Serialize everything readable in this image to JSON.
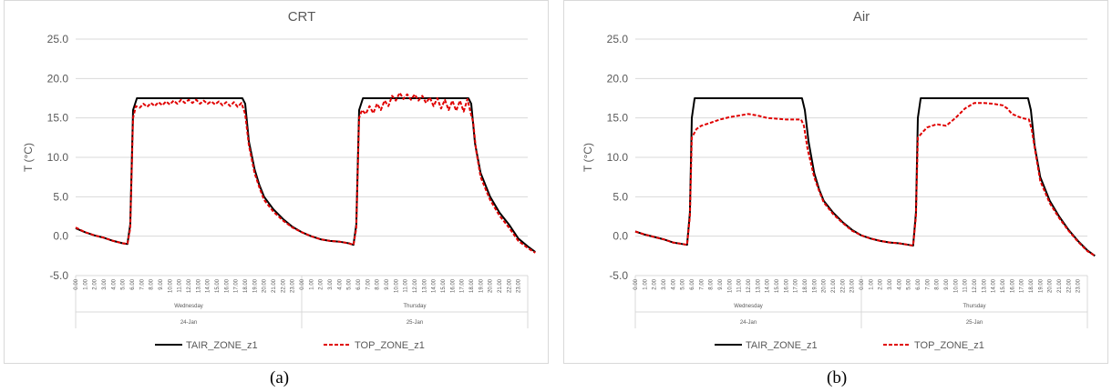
{
  "chart_data": [
    {
      "type": "line",
      "title": "CRT",
      "caption": "(a)",
      "ylabel": "T (°C)",
      "ylim": [
        -5,
        25
      ],
      "yticks": [
        "-5.0",
        "0.0",
        "5.0",
        "10.0",
        "15.0",
        "20.0",
        "25.0"
      ],
      "x_hours": [
        "0.00",
        "1.00",
        "2.00",
        "3.00",
        "4.00",
        "5.00",
        "6.00",
        "7.00",
        "8.00",
        "9.00",
        "10.00",
        "11.00",
        "12.00",
        "13.00",
        "14.00",
        "15.00",
        "16.00",
        "17.00",
        "18.00",
        "19.00",
        "20.00",
        "21.00",
        "22.00",
        "23.00"
      ],
      "days": [
        {
          "weekday": "Wednesday",
          "date": "24-Jan"
        },
        {
          "weekday": "Thursday",
          "date": "25-Jan"
        }
      ],
      "grid": true,
      "legend_position": "bottom",
      "series": [
        {
          "name": "TAIR_ZONE_z1",
          "color": "#000000",
          "style": "solid",
          "points": [
            [
              0,
              1.0
            ],
            [
              1,
              0.5
            ],
            [
              2,
              0.1
            ],
            [
              3,
              -0.2
            ],
            [
              4,
              -0.6
            ],
            [
              5,
              -0.9
            ],
            [
              5.5,
              -1.0
            ],
            [
              5.8,
              1.5
            ],
            [
              6.1,
              16.0
            ],
            [
              6.5,
              17.5
            ],
            [
              9,
              17.5
            ],
            [
              12,
              17.5
            ],
            [
              15,
              17.5
            ],
            [
              17.7,
              17.5
            ],
            [
              18,
              16.8
            ],
            [
              18.4,
              12.0
            ],
            [
              19,
              8.5
            ],
            [
              19.5,
              6.5
            ],
            [
              20,
              5.0
            ],
            [
              21,
              3.4
            ],
            [
              22,
              2.2
            ],
            [
              23,
              1.2
            ],
            [
              24,
              0.5
            ],
            [
              25,
              0.0
            ],
            [
              26,
              -0.4
            ],
            [
              27,
              -0.6
            ],
            [
              28,
              -0.7
            ],
            [
              29,
              -0.9
            ],
            [
              29.5,
              -1.1
            ],
            [
              29.8,
              1.5
            ],
            [
              30.1,
              16.0
            ],
            [
              30.5,
              17.5
            ],
            [
              33,
              17.5
            ],
            [
              36,
              17.5
            ],
            [
              39,
              17.5
            ],
            [
              41.7,
              17.5
            ],
            [
              42,
              16.8
            ],
            [
              42.4,
              11.8
            ],
            [
              43,
              8.0
            ],
            [
              44,
              5.0
            ],
            [
              45,
              3.0
            ],
            [
              46,
              1.5
            ],
            [
              47,
              -0.3
            ],
            [
              48,
              -1.3
            ],
            [
              48.8,
              -2.0
            ]
          ]
        },
        {
          "name": "TOP_ZONE_z1",
          "color": "#e00000",
          "style": "dashed",
          "points": [
            [
              0,
              1.1
            ],
            [
              1,
              0.5
            ],
            [
              2,
              0.1
            ],
            [
              3,
              -0.2
            ],
            [
              4,
              -0.6
            ],
            [
              5,
              -0.9
            ],
            [
              5.5,
              -1.0
            ],
            [
              5.8,
              1.0
            ],
            [
              6.1,
              15.0
            ],
            [
              6.4,
              16.5
            ],
            [
              6.8,
              16.3
            ],
            [
              7.2,
              16.8
            ],
            [
              7.6,
              16.4
            ],
            [
              8,
              16.9
            ],
            [
              8.4,
              16.5
            ],
            [
              8.8,
              17.0
            ],
            [
              9.2,
              16.6
            ],
            [
              9.6,
              17.1
            ],
            [
              10,
              16.7
            ],
            [
              10.4,
              17.2
            ],
            [
              10.8,
              16.8
            ],
            [
              11.2,
              17.3
            ],
            [
              11.6,
              16.9
            ],
            [
              12,
              17.3
            ],
            [
              12.4,
              16.9
            ],
            [
              12.8,
              17.3
            ],
            [
              13.2,
              16.8
            ],
            [
              13.6,
              17.2
            ],
            [
              14,
              16.8
            ],
            [
              14.4,
              17.1
            ],
            [
              14.8,
              16.7
            ],
            [
              15.2,
              17.1
            ],
            [
              15.6,
              16.6
            ],
            [
              16,
              17.0
            ],
            [
              16.4,
              16.5
            ],
            [
              16.8,
              17.0
            ],
            [
              17.2,
              16.4
            ],
            [
              17.6,
              16.9
            ],
            [
              18,
              15.5
            ],
            [
              18.4,
              11.5
            ],
            [
              19,
              8.0
            ],
            [
              19.5,
              6.2
            ],
            [
              20,
              4.6
            ],
            [
              21,
              3.1
            ],
            [
              22,
              2.0
            ],
            [
              23,
              1.1
            ],
            [
              24,
              0.5
            ],
            [
              25,
              0.0
            ],
            [
              26,
              -0.4
            ],
            [
              27,
              -0.6
            ],
            [
              28,
              -0.7
            ],
            [
              29,
              -0.9
            ],
            [
              29.5,
              -1.1
            ],
            [
              29.8,
              1.0
            ],
            [
              30.1,
              15.0
            ],
            [
              30.4,
              16.0
            ],
            [
              30.8,
              15.5
            ],
            [
              31.2,
              16.5
            ],
            [
              31.6,
              15.6
            ],
            [
              32,
              16.8
            ],
            [
              32.4,
              16.0
            ],
            [
              32.8,
              17.2
            ],
            [
              33.2,
              16.5
            ],
            [
              33.6,
              17.8
            ],
            [
              34,
              17.2
            ],
            [
              34.4,
              18.2
            ],
            [
              34.8,
              17.4
            ],
            [
              35.2,
              18.0
            ],
            [
              35.6,
              17.3
            ],
            [
              36,
              18.0
            ],
            [
              36.4,
              17.2
            ],
            [
              36.8,
              17.8
            ],
            [
              37.2,
              16.9
            ],
            [
              37.6,
              17.6
            ],
            [
              38,
              16.5
            ],
            [
              38.4,
              17.5
            ],
            [
              38.8,
              16.2
            ],
            [
              39.2,
              17.3
            ],
            [
              39.6,
              16.0
            ],
            [
              40,
              17.2
            ],
            [
              40.4,
              15.9
            ],
            [
              40.8,
              17.2
            ],
            [
              41.2,
              15.8
            ],
            [
              41.6,
              17.4
            ],
            [
              41.9,
              15.8
            ],
            [
              42.2,
              14.5
            ],
            [
              42.5,
              11.0
            ],
            [
              43,
              7.5
            ],
            [
              44,
              4.6
            ],
            [
              45,
              2.6
            ],
            [
              46,
              1.1
            ],
            [
              47,
              -0.6
            ],
            [
              48,
              -1.5
            ],
            [
              48.8,
              -2.1
            ]
          ]
        }
      ]
    },
    {
      "type": "line",
      "title": "Air",
      "caption": "(b)",
      "ylabel": "T (°C)",
      "ylim": [
        -5,
        25
      ],
      "yticks": [
        "-5.0",
        "0.0",
        "5.0",
        "10.0",
        "15.0",
        "20.0",
        "25.0"
      ],
      "x_hours": [
        "0.00",
        "1.00",
        "2.00",
        "3.00",
        "4.00",
        "5.00",
        "6.00",
        "7.00",
        "8.00",
        "9.00",
        "10.00",
        "11.00",
        "12.00",
        "13.00",
        "14.00",
        "15.00",
        "16.00",
        "17.00",
        "18.00",
        "19.00",
        "20.00",
        "21.00",
        "22.00",
        "23.00"
      ],
      "days": [
        {
          "weekday": "Wednesday",
          "date": "24-Jan"
        },
        {
          "weekday": "Thursday",
          "date": "25-Jan"
        }
      ],
      "grid": true,
      "legend_position": "bottom",
      "series": [
        {
          "name": "TAIR_ZONE_z1",
          "color": "#000000",
          "style": "solid",
          "points": [
            [
              0,
              0.6
            ],
            [
              1,
              0.2
            ],
            [
              2,
              -0.1
            ],
            [
              3,
              -0.4
            ],
            [
              4,
              -0.8
            ],
            [
              5,
              -1.0
            ],
            [
              5.5,
              -1.1
            ],
            [
              5.8,
              3.0
            ],
            [
              6.0,
              15.0
            ],
            [
              6.3,
              17.5
            ],
            [
              9,
              17.5
            ],
            [
              12,
              17.5
            ],
            [
              15,
              17.5
            ],
            [
              17.7,
              17.5
            ],
            [
              18,
              16.0
            ],
            [
              18.4,
              12.0
            ],
            [
              19,
              8.0
            ],
            [
              19.5,
              6.0
            ],
            [
              20,
              4.5
            ],
            [
              21,
              3.0
            ],
            [
              22,
              1.8
            ],
            [
              23,
              0.8
            ],
            [
              24,
              0.1
            ],
            [
              25,
              -0.3
            ],
            [
              26,
              -0.6
            ],
            [
              27,
              -0.8
            ],
            [
              28,
              -0.9
            ],
            [
              29,
              -1.1
            ],
            [
              29.5,
              -1.2
            ],
            [
              29.8,
              3.0
            ],
            [
              30.0,
              15.0
            ],
            [
              30.3,
              17.5
            ],
            [
              33,
              17.5
            ],
            [
              36,
              17.5
            ],
            [
              39,
              17.5
            ],
            [
              41.7,
              17.5
            ],
            [
              42,
              16.0
            ],
            [
              42.4,
              11.5
            ],
            [
              43,
              7.5
            ],
            [
              44,
              4.5
            ],
            [
              45,
              2.5
            ],
            [
              46,
              0.8
            ],
            [
              47,
              -0.6
            ],
            [
              48,
              -1.8
            ],
            [
              48.8,
              -2.5
            ]
          ]
        },
        {
          "name": "TOP_ZONE_z1",
          "color": "#e00000",
          "style": "dashed",
          "points": [
            [
              0,
              0.6
            ],
            [
              1,
              0.2
            ],
            [
              2,
              -0.1
            ],
            [
              3,
              -0.4
            ],
            [
              4,
              -0.8
            ],
            [
              5,
              -1.0
            ],
            [
              5.5,
              -1.1
            ],
            [
              5.8,
              2.5
            ],
            [
              6.0,
              12.5
            ],
            [
              6.5,
              13.6
            ],
            [
              7,
              14.0
            ],
            [
              8,
              14.4
            ],
            [
              9,
              14.8
            ],
            [
              10,
              15.1
            ],
            [
              11,
              15.3
            ],
            [
              12,
              15.5
            ],
            [
              13,
              15.3
            ],
            [
              14,
              15.0
            ],
            [
              15,
              14.9
            ],
            [
              16,
              14.8
            ],
            [
              17.6,
              14.8
            ],
            [
              17.9,
              14.0
            ],
            [
              18.3,
              11.0
            ],
            [
              19,
              7.5
            ],
            [
              19.5,
              5.8
            ],
            [
              20,
              4.3
            ],
            [
              21,
              2.8
            ],
            [
              22,
              1.7
            ],
            [
              23,
              0.7
            ],
            [
              24,
              0.1
            ],
            [
              25,
              -0.3
            ],
            [
              26,
              -0.6
            ],
            [
              27,
              -0.8
            ],
            [
              28,
              -0.9
            ],
            [
              29,
              -1.1
            ],
            [
              29.5,
              -1.2
            ],
            [
              29.8,
              2.5
            ],
            [
              30.0,
              12.5
            ],
            [
              30.5,
              13.2
            ],
            [
              31,
              13.8
            ],
            [
              32,
              14.2
            ],
            [
              33,
              14.0
            ],
            [
              34,
              15.0
            ],
            [
              35,
              16.2
            ],
            [
              36,
              16.9
            ],
            [
              37,
              16.9
            ],
            [
              38,
              16.8
            ],
            [
              39,
              16.6
            ],
            [
              39.5,
              16.2
            ],
            [
              40,
              15.5
            ],
            [
              41,
              15.0
            ],
            [
              41.8,
              14.8
            ],
            [
              42.1,
              13.5
            ],
            [
              42.5,
              10.5
            ],
            [
              43,
              7.0
            ],
            [
              44,
              4.2
            ],
            [
              45,
              2.3
            ],
            [
              46,
              0.7
            ],
            [
              47,
              -0.7
            ],
            [
              48,
              -1.9
            ],
            [
              48.8,
              -2.5
            ]
          ]
        }
      ]
    }
  ]
}
